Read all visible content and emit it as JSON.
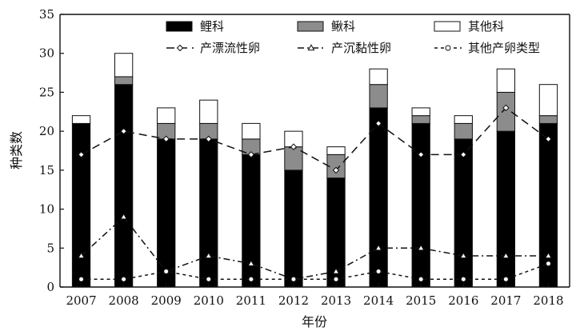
{
  "chart_data": {
    "type": "bar",
    "subtype": "stacked-bar-with-lines",
    "categories": [
      "2007",
      "2008",
      "2009",
      "2010",
      "2011",
      "2012",
      "2013",
      "2014",
      "2015",
      "2016",
      "2017",
      "2018"
    ],
    "xlabel": "年份",
    "ylabel": "种类数",
    "ylim": [
      0,
      35
    ],
    "yticks": [
      0,
      5,
      10,
      15,
      20,
      25,
      30,
      35
    ],
    "grid": false,
    "legend_position": "top",
    "bar_series": [
      {
        "name": "鲤科",
        "color": "#000000",
        "values": [
          21,
          26,
          19,
          19,
          17,
          15,
          14,
          23,
          21,
          19,
          20,
          21
        ]
      },
      {
        "name": "鳅科",
        "color": "#8c8c8c",
        "values": [
          0,
          1,
          2,
          2,
          2,
          3,
          3,
          3,
          1,
          2,
          5,
          1
        ]
      },
      {
        "name": "其他科",
        "color": "#ffffff",
        "values": [
          1,
          3,
          2,
          3,
          2,
          2,
          1,
          2,
          1,
          1,
          3,
          4
        ]
      }
    ],
    "line_series": [
      {
        "name": "产漂流性卵",
        "marker": "diamond",
        "dash": "10,6",
        "values": [
          17,
          20,
          19,
          19,
          17,
          18,
          15,
          21,
          17,
          17,
          23,
          19
        ]
      },
      {
        "name": "产沉黏性卵",
        "marker": "triangle",
        "dash": "8,4,2,4",
        "values": [
          4,
          9,
          2,
          4,
          3,
          1,
          2,
          5,
          5,
          4,
          4,
          4
        ]
      },
      {
        "name": "其他产卵类型",
        "marker": "circle",
        "dash": "4,4",
        "values": [
          1,
          1,
          2,
          1,
          1,
          1,
          1,
          2,
          1,
          1,
          1,
          3
        ]
      }
    ]
  }
}
